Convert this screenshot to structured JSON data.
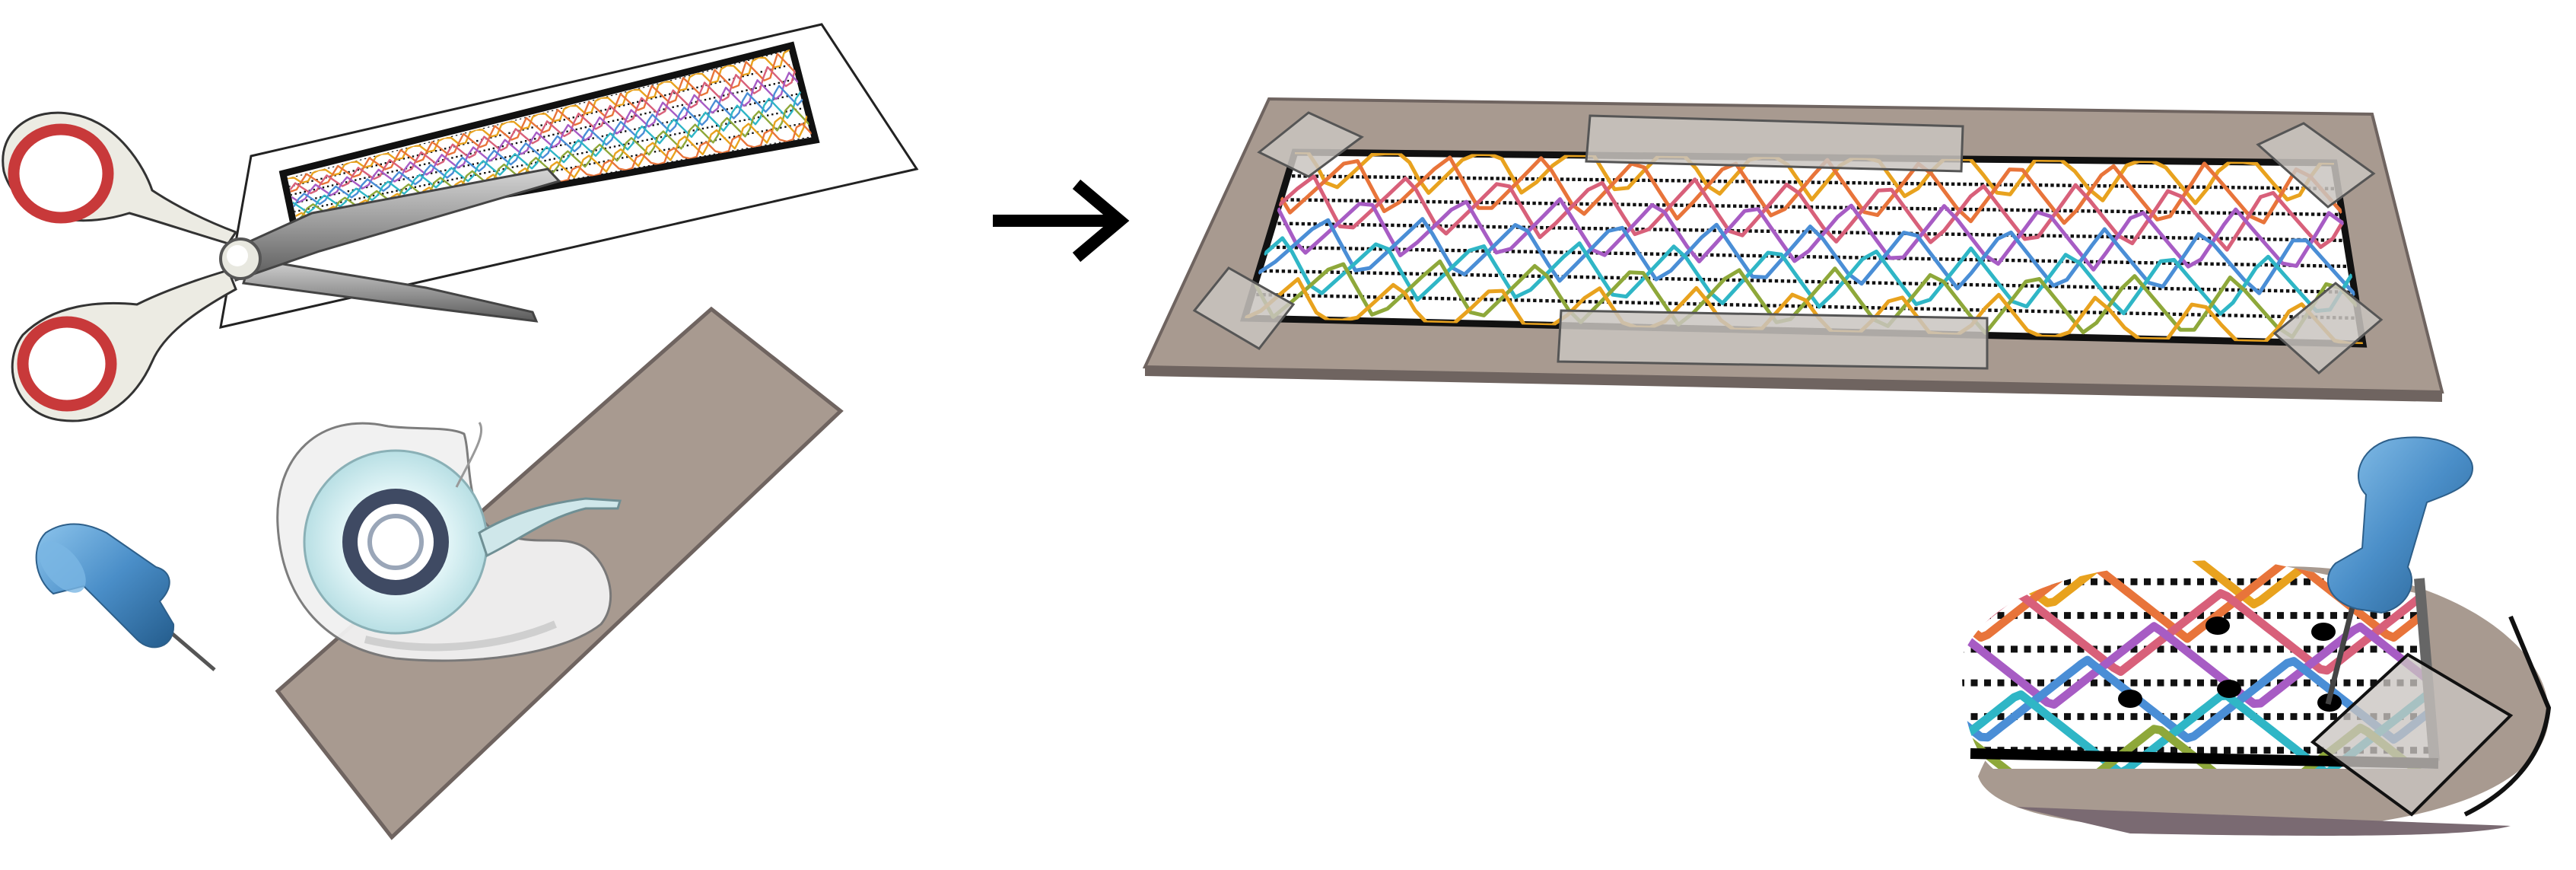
{
  "illustration": {
    "tools": [
      "scissors-icon",
      "printed-pattern-sheet",
      "tape-dispenser-icon",
      "push-pin-icon",
      "cardboard-board"
    ],
    "arrow": "right-arrow-icon",
    "result": "pattern-taped-to-board",
    "detail": "magnified-pin-piercing-grid-intersection"
  },
  "palette": {
    "board": "#a89a90",
    "board_edge": "#6f6460",
    "tape": "#c9c4c0",
    "scissor_handle_rim": "#c8393a",
    "scissor_handle": "#ecebe3",
    "pin": "#4a8ec8",
    "tape_ring": "#3f4a63",
    "wave_colors": [
      "#e8a21e",
      "#e8743a",
      "#d8607a",
      "#a75cc4",
      "#4a8ed6",
      "#2fb6c6",
      "#8ea83a"
    ]
  }
}
